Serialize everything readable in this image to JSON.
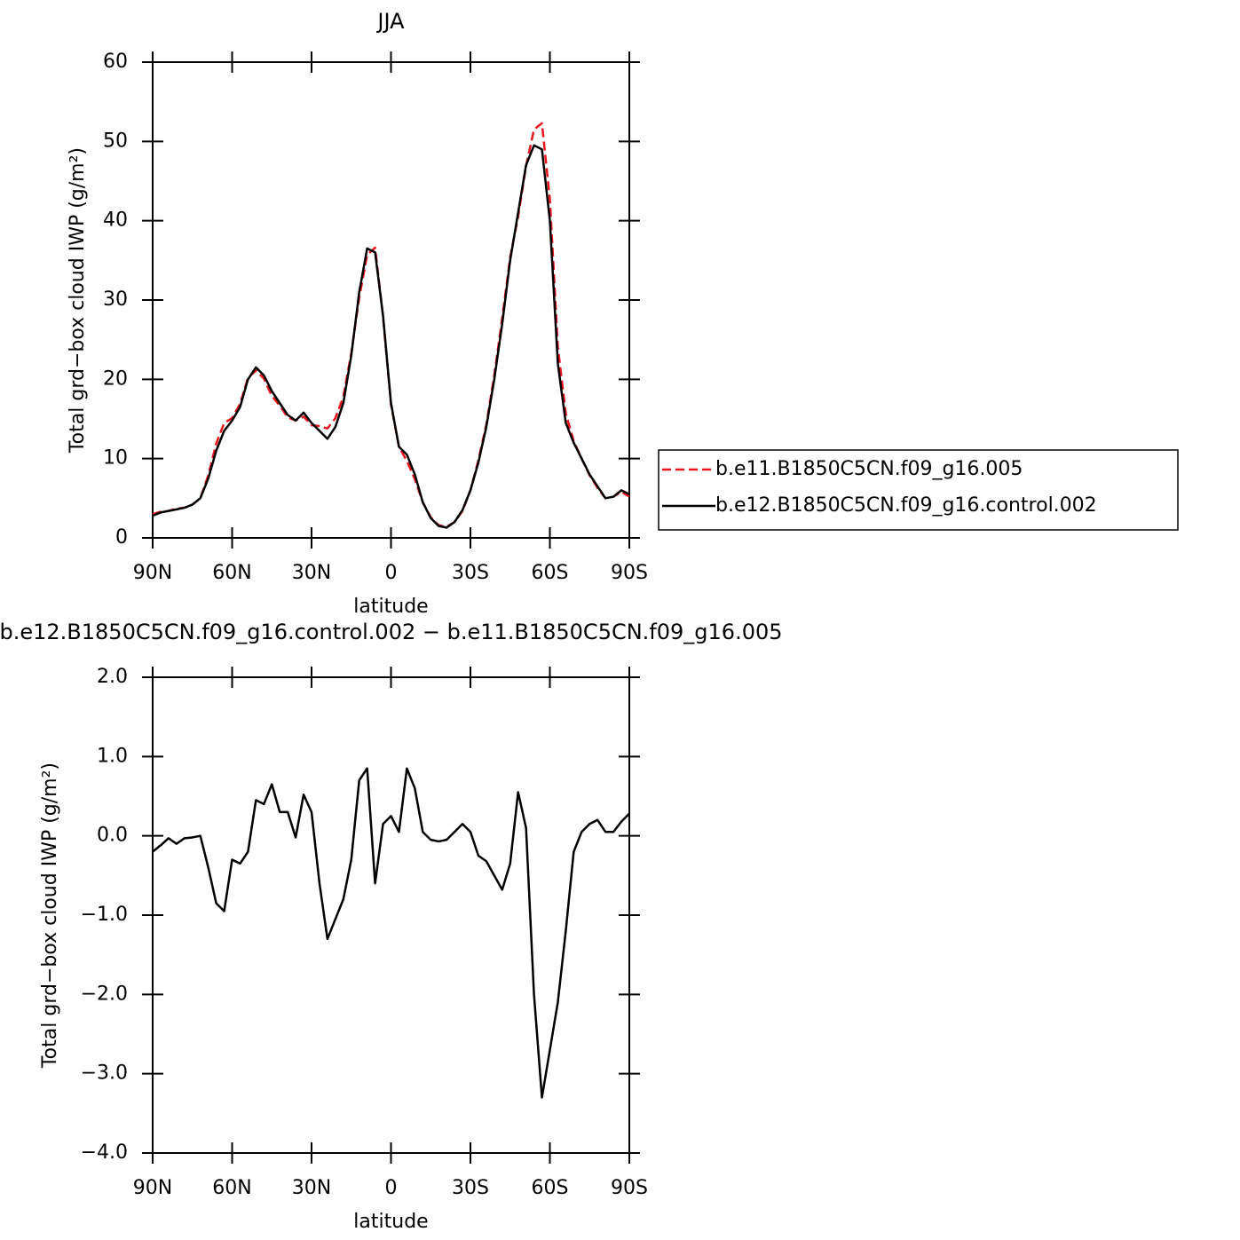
{
  "chart_data": [
    {
      "type": "line",
      "title": "JJA",
      "x_label": "latitude",
      "y_label": "Total grd−box cloud IWP (g/m²)",
      "x": [
        90,
        87,
        84,
        81,
        78,
        75,
        72,
        69,
        66,
        63,
        60,
        57,
        54,
        51,
        48,
        45,
        42,
        39,
        36,
        33,
        30,
        27,
        24,
        21,
        18,
        15,
        12,
        9,
        6,
        3,
        0,
        -3,
        -6,
        -9,
        -12,
        -15,
        -18,
        -21,
        -24,
        -27,
        -30,
        -33,
        -36,
        -39,
        -42,
        -45,
        -48,
        -51,
        -54,
        -57,
        -60,
        -63,
        -66,
        -69,
        -72,
        -75,
        -78,
        -81,
        -84,
        -87,
        -90
      ],
      "series": [
        {
          "name": "b.e11.B1850C5CN.f09_g16.005",
          "color": "#e8141c",
          "linestyle": "dashed",
          "values": [
            3.0,
            3.3,
            3.4,
            3.7,
            3.8,
            4.2,
            5.0,
            7.9,
            11.9,
            14.5,
            15.1,
            16.9,
            20.2,
            21.1,
            20.1,
            17.9,
            16.7,
            15.2,
            14.8,
            15.3,
            14.2,
            14.1,
            13.8,
            15.1,
            17.8,
            23.3,
            30.3,
            35.7,
            36.6,
            27.9,
            16.8,
            11.5,
            9.7,
            7.4,
            4.5,
            2.6,
            1.6,
            1.4,
            2.0,
            3.4,
            6.0,
            9.8,
            14.3,
            20.5,
            27.7,
            35.4,
            40.5,
            46.9,
            51.5,
            52.3,
            42.7,
            24.1,
            15.7,
            12.2,
            10.0,
            7.9,
            6.3,
            5.0,
            5.2,
            5.8,
            5.2
          ]
        },
        {
          "name": "b.e12.B1850C5CN.f09_g16.control.002",
          "color": "#000000",
          "linestyle": "solid",
          "values": [
            2.8,
            3.2,
            3.4,
            3.6,
            3.8,
            4.2,
            5.0,
            7.5,
            11,
            13.5,
            14.8,
            16.5,
            20,
            21.5,
            20.5,
            18.5,
            17,
            15.5,
            14.8,
            15.8,
            14.5,
            13.5,
            12.5,
            14,
            17,
            23,
            31,
            36.5,
            36,
            28,
            17,
            11.5,
            10.5,
            8,
            4.5,
            2.5,
            1.5,
            1.3,
            2,
            3.5,
            6,
            9.5,
            14,
            20,
            27,
            35,
            41,
            47,
            49.5,
            49,
            40,
            22,
            14.5,
            12,
            10,
            8,
            6.5,
            5,
            5.2,
            6,
            5.5
          ]
        }
      ],
      "xlim": [
        90,
        -90
      ],
      "xticks": [
        {
          "value": 90,
          "label": "90N"
        },
        {
          "value": 60,
          "label": "60N"
        },
        {
          "value": 30,
          "label": "30N"
        },
        0,
        {
          "value": -30,
          "label": "30S"
        },
        {
          "value": -60,
          "label": "60S"
        },
        {
          "value": -90,
          "label": "90S"
        }
      ],
      "ylim": [
        0,
        60
      ],
      "yticks": [
        0,
        10,
        20,
        30,
        40,
        50,
        60
      ],
      "legend": "right"
    },
    {
      "type": "line",
      "title": "b.e12.B1850C5CN.f09_g16.control.002 − b.e11.B1850C5CN.f09_g16.005",
      "x_label": "latitude",
      "y_label": "Total grd−box cloud IWP (g/m²)",
      "x": [
        90,
        87,
        84,
        81,
        78,
        75,
        72,
        69,
        66,
        63,
        60,
        57,
        54,
        51,
        48,
        45,
        42,
        39,
        36,
        33,
        30,
        27,
        24,
        21,
        18,
        15,
        12,
        9,
        6,
        3,
        0,
        -3,
        -6,
        -9,
        -12,
        -15,
        -18,
        -21,
        -24,
        -27,
        -30,
        -33,
        -36,
        -39,
        -42,
        -45,
        -48,
        -51,
        -54,
        -57,
        -60,
        -63,
        -66,
        -69,
        -72,
        -75,
        -78,
        -81,
        -84,
        -87,
        -90
      ],
      "values": [
        -0.2,
        -0.12,
        -0.03,
        -0.1,
        -0.03,
        -0.02,
        0.0,
        -0.4,
        -0.85,
        -0.95,
        -0.3,
        -0.35,
        -0.2,
        0.45,
        0.4,
        0.65,
        0.3,
        0.3,
        -0.02,
        0.52,
        0.3,
        -0.6,
        -1.3,
        -1.05,
        -0.8,
        -0.3,
        0.7,
        0.85,
        -0.6,
        0.15,
        0.25,
        0.05,
        0.85,
        0.6,
        0.05,
        -0.05,
        -0.07,
        -0.05,
        0.05,
        0.15,
        0.05,
        -0.25,
        -0.32,
        -0.5,
        -0.68,
        -0.35,
        0.55,
        0.1,
        -2.0,
        -3.3,
        -2.7,
        -2.1,
        -1.2,
        -0.2,
        0.05,
        0.15,
        0.2,
        0.05,
        0.05,
        0.18,
        0.28
      ],
      "color": "#000000",
      "xlim": [
        90,
        -90
      ],
      "xticks": [
        {
          "value": 90,
          "label": "90N"
        },
        {
          "value": 60,
          "label": "60N"
        },
        {
          "value": 30,
          "label": "30N"
        },
        0,
        {
          "value": -30,
          "label": "30S"
        },
        {
          "value": -60,
          "label": "60S"
        },
        {
          "value": -90,
          "label": "90S"
        }
      ],
      "ylim": [
        -4,
        2
      ],
      "yticks": [
        {
          "value": -4,
          "label": "−4.0"
        },
        {
          "value": -3,
          "label": "−3.0"
        },
        {
          "value": -2,
          "label": "−2.0"
        },
        {
          "value": -1,
          "label": "−1.0"
        },
        {
          "value": 0,
          "label": "0.0"
        },
        {
          "value": 1,
          "label": "1.0"
        },
        {
          "value": 2,
          "label": "2.0"
        }
      ]
    }
  ]
}
